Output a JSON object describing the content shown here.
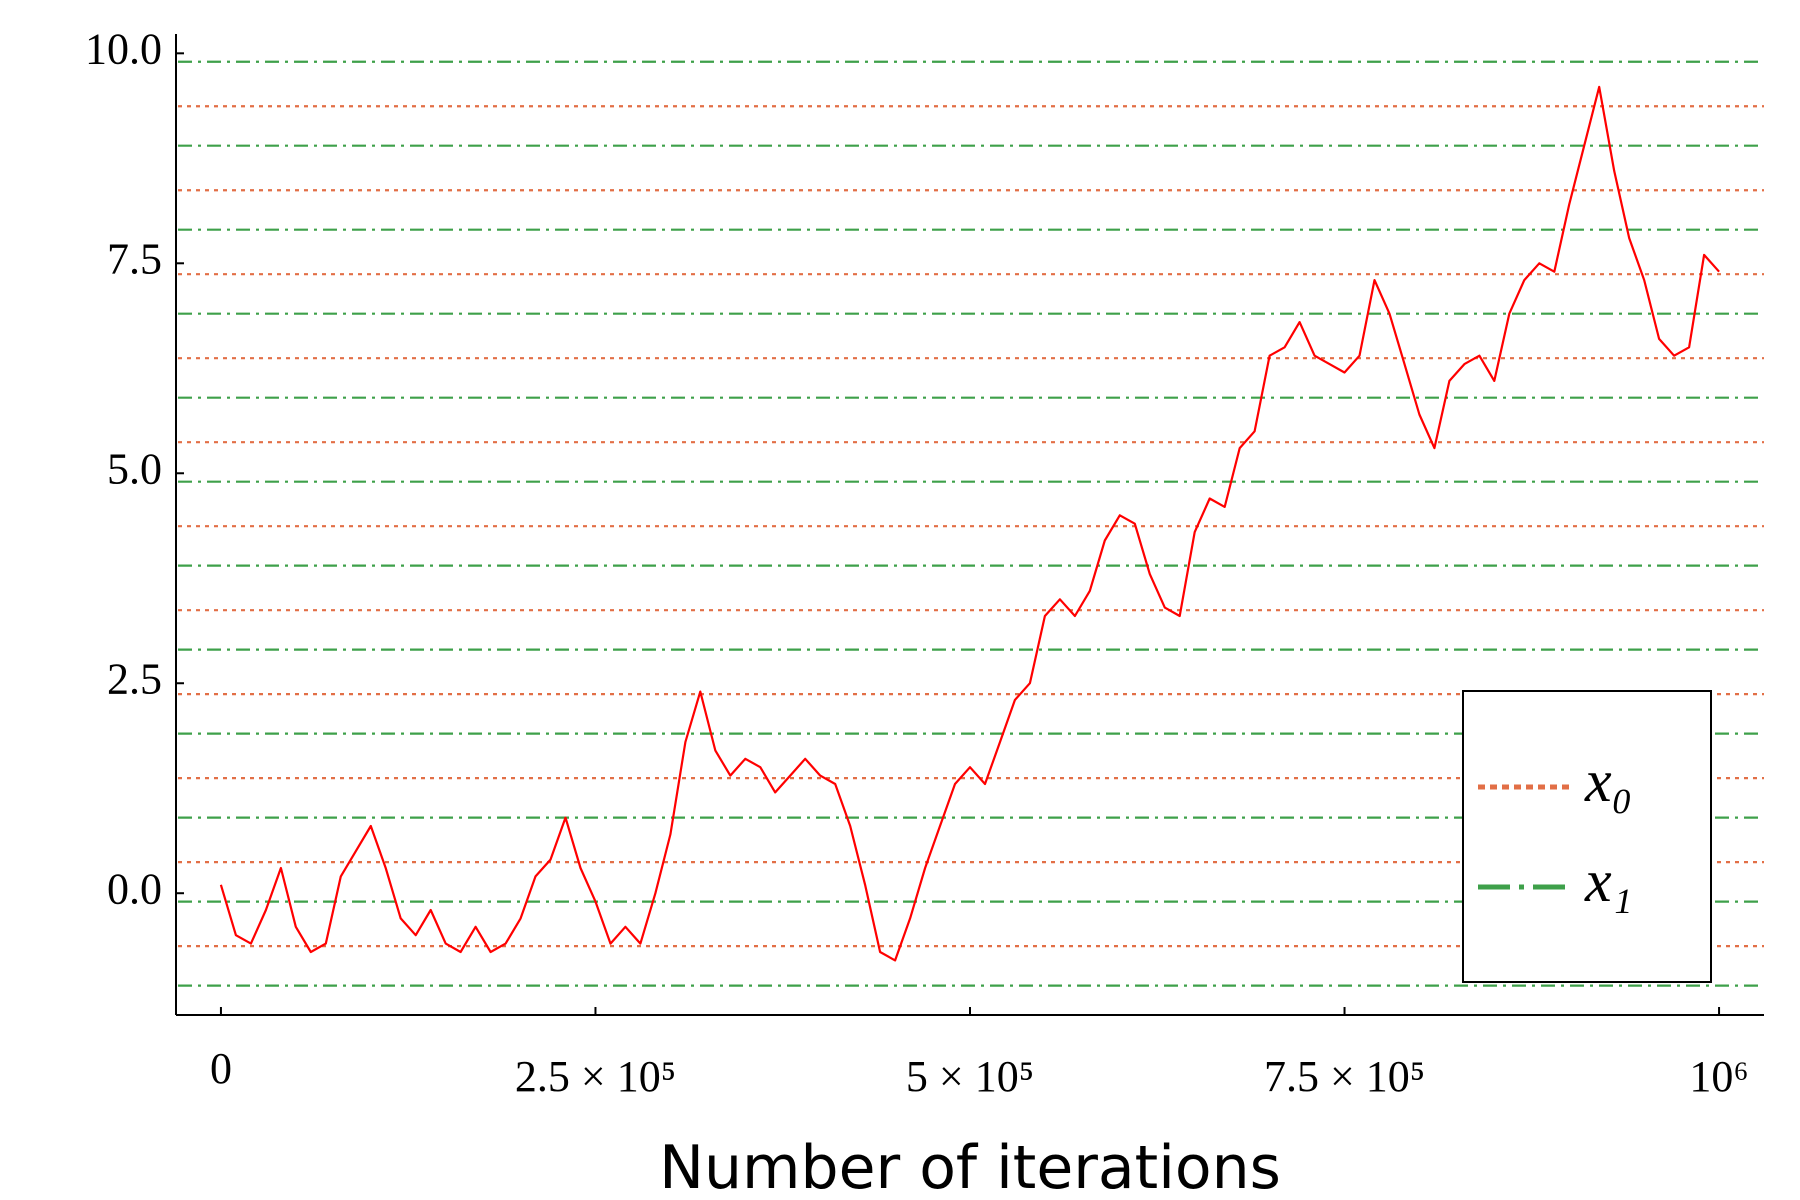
{
  "chart_data": {
    "type": "line",
    "xlabel": "Number of iterations",
    "x": [
      0,
      10000,
      20000,
      30000,
      40000,
      50000,
      60000,
      70000,
      80000,
      90000,
      100000,
      110000,
      120000,
      130000,
      140000,
      150000,
      160000,
      170000,
      180000,
      190000,
      200000,
      210000,
      220000,
      230000,
      240000,
      250000,
      260000,
      270000,
      280000,
      290000,
      300000,
      310000,
      320000,
      330000,
      340000,
      350000,
      360000,
      370000,
      380000,
      390000,
      400000,
      410000,
      420000,
      430000,
      440000,
      450000,
      460000,
      470000,
      480000,
      490000,
      500000,
      510000,
      520000,
      530000,
      540000,
      550000,
      560000,
      570000,
      580000,
      590000,
      600000,
      610000,
      620000,
      630000,
      640000,
      650000,
      660000,
      670000,
      680000,
      690000,
      700000,
      710000,
      720000,
      730000,
      740000,
      750000,
      760000,
      770000,
      780000,
      790000,
      800000,
      810000,
      820000,
      830000,
      840000,
      850000,
      860000,
      870000,
      880000,
      890000,
      900000,
      910000,
      920000,
      930000,
      940000,
      950000,
      960000,
      970000,
      980000,
      990000,
      1000000
    ],
    "values": [
      0.1,
      -0.5,
      -0.6,
      -0.2,
      0.3,
      -0.4,
      -0.7,
      -0.6,
      0.2,
      0.5,
      0.8,
      0.3,
      -0.3,
      -0.5,
      -0.2,
      -0.6,
      -0.7,
      -0.4,
      -0.7,
      -0.6,
      -0.3,
      0.2,
      0.4,
      0.9,
      0.3,
      -0.1,
      -0.6,
      -0.4,
      -0.6,
      0.0,
      0.7,
      1.8,
      2.4,
      1.7,
      1.4,
      1.6,
      1.5,
      1.2,
      1.4,
      1.6,
      1.4,
      1.3,
      0.8,
      0.1,
      -0.7,
      -0.8,
      -0.3,
      0.3,
      0.8,
      1.3,
      1.5,
      1.3,
      1.8,
      2.3,
      2.5,
      3.3,
      3.5,
      3.3,
      3.6,
      4.2,
      4.5,
      4.4,
      3.8,
      3.4,
      3.3,
      4.3,
      4.7,
      4.6,
      5.3,
      5.5,
      6.4,
      6.5,
      6.8,
      6.4,
      6.3,
      6.2,
      6.4,
      7.3,
      6.9,
      6.3,
      5.7,
      5.3,
      6.1,
      6.3,
      6.4,
      6.1,
      6.9,
      7.3,
      7.5,
      7.4,
      8.2,
      8.9,
      9.6,
      8.6,
      7.8,
      7.3,
      6.6,
      6.4,
      6.5,
      7.6,
      7.4
    ],
    "color": "#ff0000",
    "hline_series": [
      {
        "name": "x₀",
        "color": "#e26f46",
        "style": "dotted",
        "values": [
          -0.63,
          0.37,
          1.37,
          2.37,
          3.37,
          4.37,
          5.37,
          6.37,
          7.37,
          8.37,
          9.37
        ]
      },
      {
        "name": "x₁",
        "color": "#3ea04a",
        "style": "dashdot",
        "values": [
          -1.1,
          -0.1,
          0.9,
          1.9,
          2.9,
          3.9,
          4.9,
          5.9,
          6.9,
          7.9,
          8.9,
          9.9
        ]
      }
    ],
    "xlim": [
      -30000,
      1030000
    ],
    "ylim": [
      -1.45,
      10.23
    ],
    "xticks": [
      0,
      {
        "value": 250000,
        "label": "2.5 × 10⁵"
      },
      {
        "value": 500000,
        "label": "5 × 10⁵"
      },
      {
        "value": 750000,
        "label": "7.5 × 10⁵"
      },
      {
        "value": 1000000,
        "label": "10⁶"
      }
    ],
    "yticks": [
      {
        "value": 0,
        "label": "0.0"
      },
      2.5,
      {
        "value": 5,
        "label": "5.0"
      },
      7.5,
      {
        "value": 10,
        "label": "10.0"
      }
    ],
    "grid": false,
    "legend": "lower right"
  }
}
